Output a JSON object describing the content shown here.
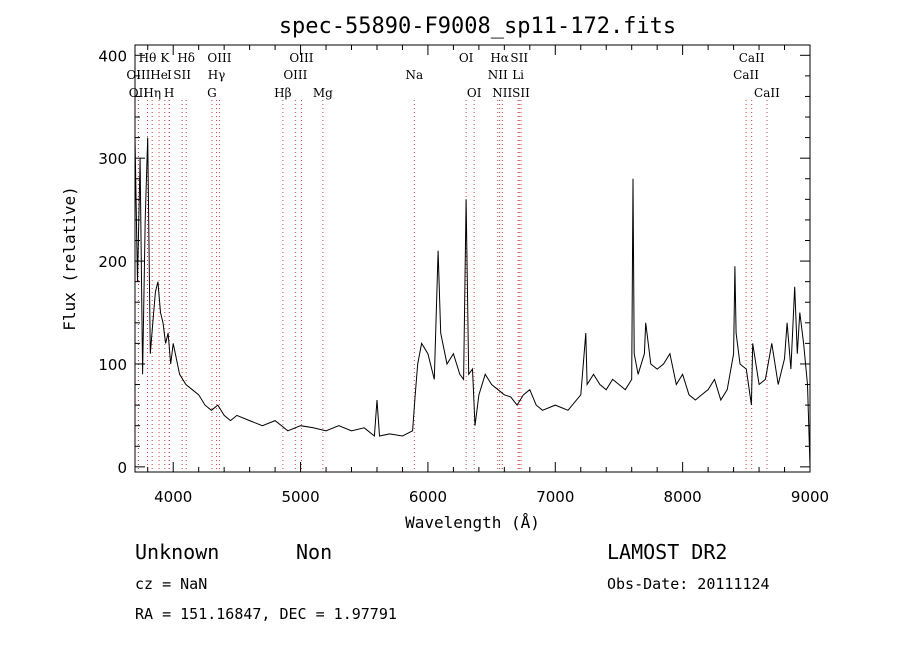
{
  "chart_data": {
    "type": "line",
    "title": "spec-55890-F9008_sp11-172.fits",
    "xlabel": "Wavelength (Å)",
    "ylabel": "Flux (relative)",
    "xlim": [
      3700,
      9000
    ],
    "ylim": [
      -5,
      410
    ],
    "x_ticks": [
      4000,
      5000,
      6000,
      7000,
      8000,
      9000
    ],
    "y_ticks": [
      0,
      100,
      200,
      300,
      400
    ],
    "grid": false,
    "line_color": "#000000",
    "marker_color": "#d94040",
    "series": [
      {
        "x": [
          3700,
          3720,
          3740,
          3760,
          3780,
          3800,
          3820,
          3840,
          3860,
          3880,
          3900,
          3920,
          3940,
          3960,
          3980,
          4000,
          4050,
          4100,
          4150,
          4200,
          4250,
          4300,
          4350,
          4400,
          4450,
          4500,
          4600,
          4700,
          4800,
          4900,
          5000,
          5100,
          5200,
          5300,
          5400,
          5500,
          5580,
          5600,
          5620,
          5700,
          5800,
          5880,
          5900,
          5920,
          5950,
          6000,
          6050,
          6080,
          6100,
          6150,
          6200,
          6250,
          6280,
          6300,
          6320,
          6350,
          6370,
          6400,
          6450,
          6500,
          6550,
          6600,
          6650,
          6700,
          6750,
          6800,
          6850,
          6900,
          7000,
          7100,
          7200,
          7240,
          7250,
          7300,
          7350,
          7400,
          7450,
          7500,
          7550,
          7600,
          7610,
          7620,
          7650,
          7700,
          7710,
          7750,
          7800,
          7850,
          7900,
          7950,
          8000,
          8050,
          8100,
          8150,
          8200,
          8250,
          8300,
          8350,
          8400,
          8410,
          8420,
          8450,
          8500,
          8540,
          8550,
          8600,
          8650,
          8700,
          8750,
          8800,
          8820,
          8850,
          8880,
          8900,
          8920,
          8950,
          8980,
          9000
        ],
        "y": [
          320,
          180,
          300,
          90,
          240,
          320,
          110,
          140,
          170,
          180,
          150,
          140,
          120,
          130,
          100,
          120,
          90,
          80,
          75,
          70,
          60,
          55,
          60,
          50,
          45,
          50,
          45,
          40,
          45,
          35,
          40,
          38,
          35,
          40,
          35,
          38,
          30,
          65,
          30,
          32,
          30,
          35,
          70,
          100,
          120,
          110,
          85,
          210,
          130,
          100,
          110,
          90,
          85,
          260,
          90,
          95,
          40,
          70,
          90,
          80,
          75,
          70,
          68,
          60,
          70,
          75,
          60,
          55,
          60,
          55,
          70,
          130,
          80,
          90,
          80,
          75,
          85,
          80,
          75,
          85,
          280,
          110,
          90,
          110,
          140,
          100,
          95,
          100,
          110,
          80,
          90,
          70,
          65,
          70,
          75,
          85,
          65,
          75,
          110,
          195,
          130,
          100,
          95,
          60,
          120,
          80,
          85,
          120,
          80,
          105,
          140,
          95,
          175,
          110,
          150,
          120,
          80,
          0
        ]
      }
    ],
    "lines": [
      {
        "label": "Hθ",
        "x": 3798,
        "row": 0
      },
      {
        "label": "K",
        "x": 3934,
        "row": 0
      },
      {
        "label": "Hδ",
        "x": 4102,
        "row": 0
      },
      {
        "label": "OIII",
        "x": 4363,
        "row": 0
      },
      {
        "label": "OIII",
        "x": 5007,
        "row": 0
      },
      {
        "label": "OI",
        "x": 6300,
        "row": 0
      },
      {
        "label": "Hα",
        "x": 6563,
        "row": 0
      },
      {
        "label": "SII",
        "x": 6717,
        "row": 0
      },
      {
        "label": "CaII",
        "x": 8542,
        "row": 0
      },
      {
        "label": "OIII",
        "x": 3727,
        "row": 1
      },
      {
        "label": "He",
        "x": 3889,
        "row": 1
      },
      {
        "label": "I",
        "x": 3970,
        "row": 1
      },
      {
        "label": "SII",
        "x": 4070,
        "row": 1
      },
      {
        "label": "Hγ",
        "x": 4340,
        "row": 1
      },
      {
        "label": "OIII",
        "x": 4959,
        "row": 1
      },
      {
        "label": "Na",
        "x": 5893,
        "row": 1
      },
      {
        "label": "NII",
        "x": 6548,
        "row": 1
      },
      {
        "label": "Li",
        "x": 6708,
        "row": 1
      },
      {
        "label": "CaII",
        "x": 8498,
        "row": 1
      },
      {
        "label": "OII",
        "x": 3727,
        "row": 2
      },
      {
        "label": "Hη",
        "x": 3835,
        "row": 2
      },
      {
        "label": "H",
        "x": 3968,
        "row": 2
      },
      {
        "label": "G",
        "x": 4304,
        "row": 2
      },
      {
        "label": "Hβ",
        "x": 4861,
        "row": 2
      },
      {
        "label": "Mg",
        "x": 5175,
        "row": 2
      },
      {
        "label": "OI",
        "x": 6363,
        "row": 2
      },
      {
        "label": "NII",
        "x": 6584,
        "row": 2
      },
      {
        "label": "SII",
        "x": 6731,
        "row": 2
      },
      {
        "label": "CaII",
        "x": 8662,
        "row": 2
      }
    ]
  },
  "info": {
    "class_label": "Unknown",
    "subclass_label": "Non",
    "cz": "cz = NaN",
    "radec": "RA = 151.16847, DEC =   1.97791",
    "survey": "LAMOST DR2",
    "obs_date": "Obs-Date: 20111124"
  }
}
